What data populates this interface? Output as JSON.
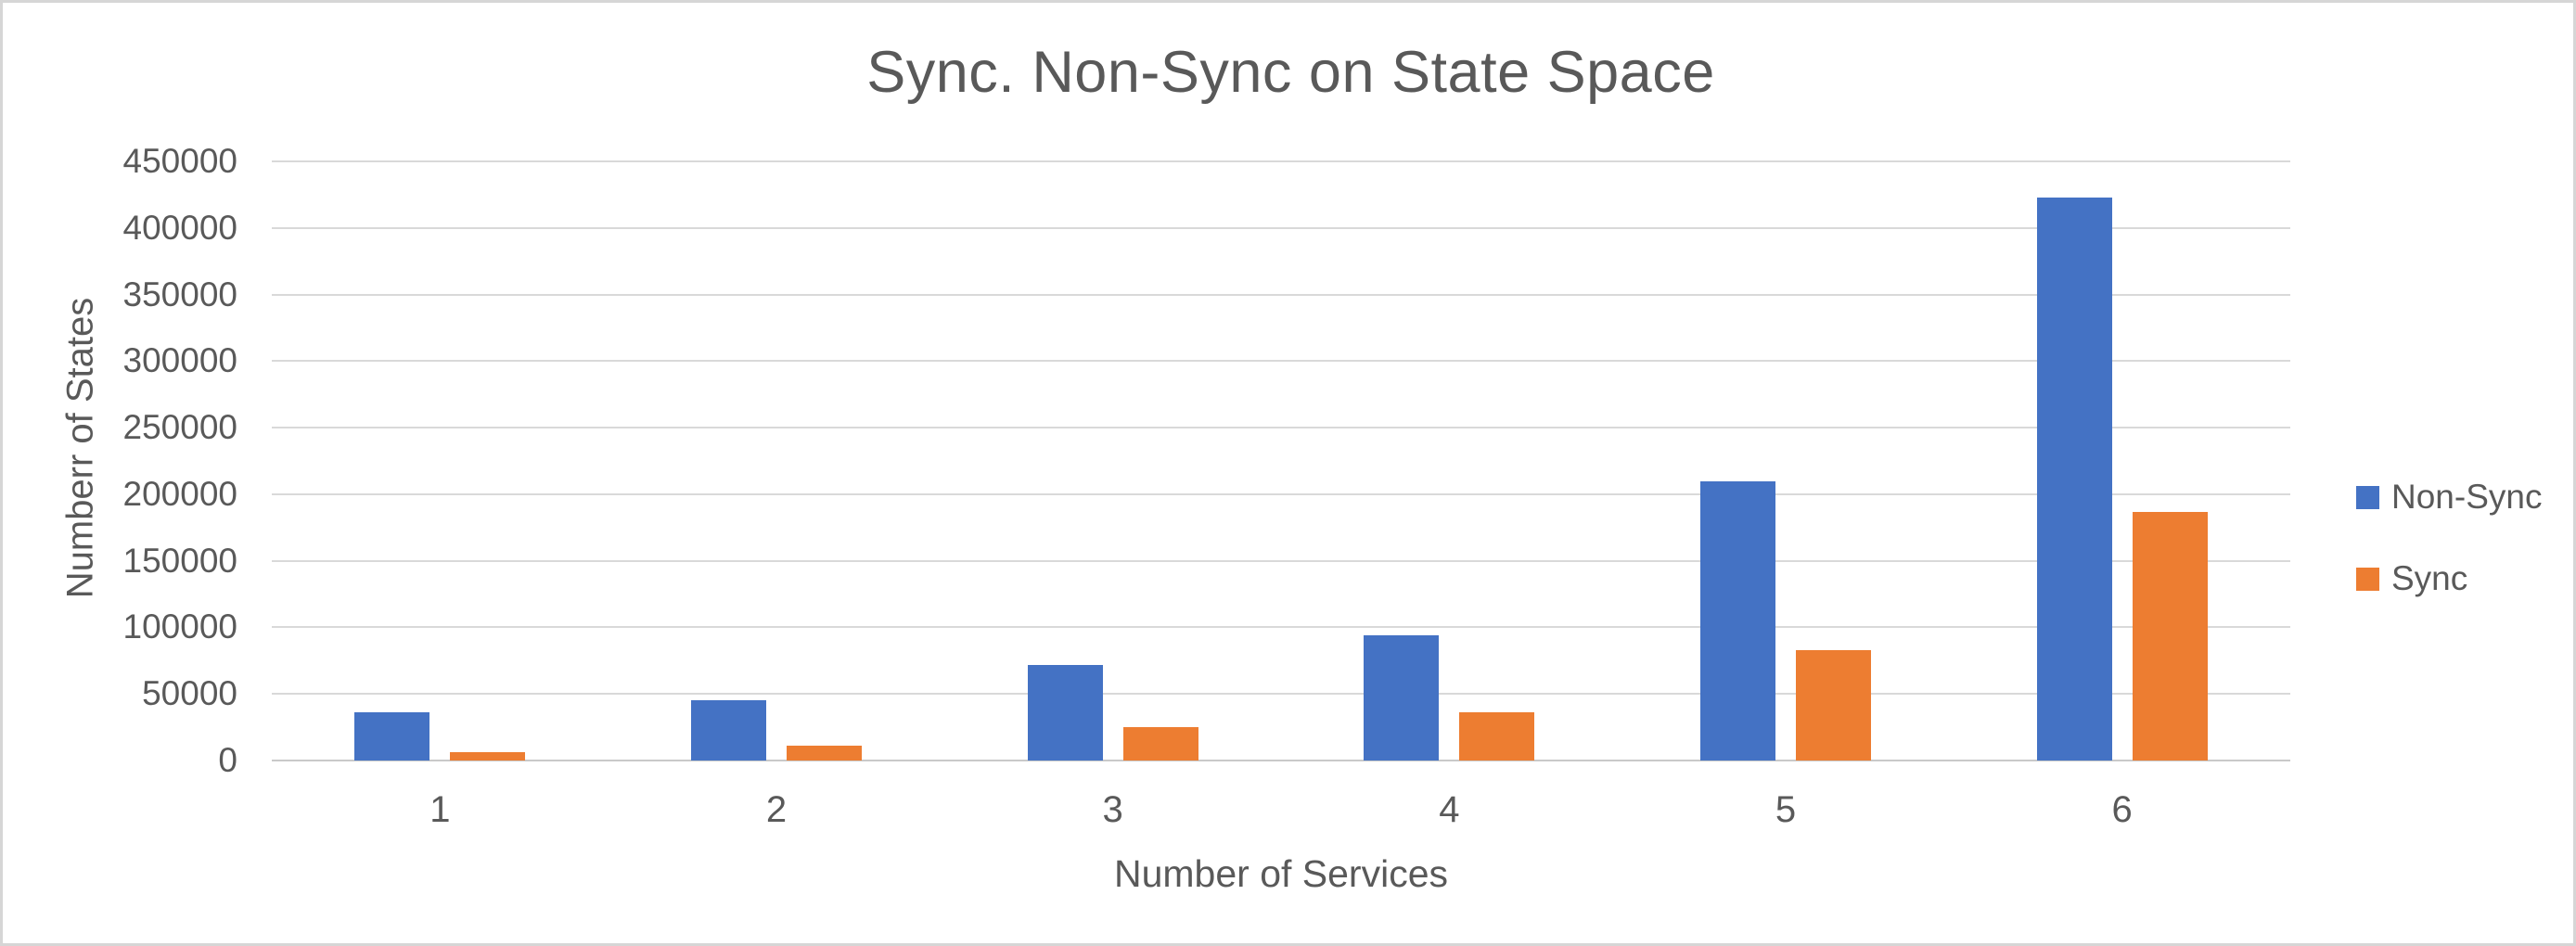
{
  "chart_data": {
    "type": "bar",
    "title": "Sync. Non-Sync on State Space",
    "xlabel": "Number of Services",
    "ylabel": "Numberr of States",
    "categories": [
      "1",
      "2",
      "3",
      "4",
      "5",
      "6"
    ],
    "series": [
      {
        "name": "Non-Sync",
        "color": "#4472c4",
        "values": [
          36000,
          45000,
          72000,
          94000,
          210000,
          423000
        ]
      },
      {
        "name": "Sync",
        "color": "#ed7d31",
        "values": [
          6000,
          11000,
          25000,
          36000,
          83000,
          187000
        ]
      }
    ],
    "ylim": [
      0,
      450000
    ],
    "ytick_step": 50000,
    "ytick_labels": [
      "0",
      "50000",
      "100000",
      "150000",
      "200000",
      "250000",
      "300000",
      "350000",
      "400000",
      "450000"
    ],
    "grid": "horizontal",
    "legend_position": "right",
    "colors": {
      "text": "#595959",
      "gridline": "#d9d9d9",
      "non_sync": "#4472c4",
      "sync": "#ed7d31"
    }
  }
}
